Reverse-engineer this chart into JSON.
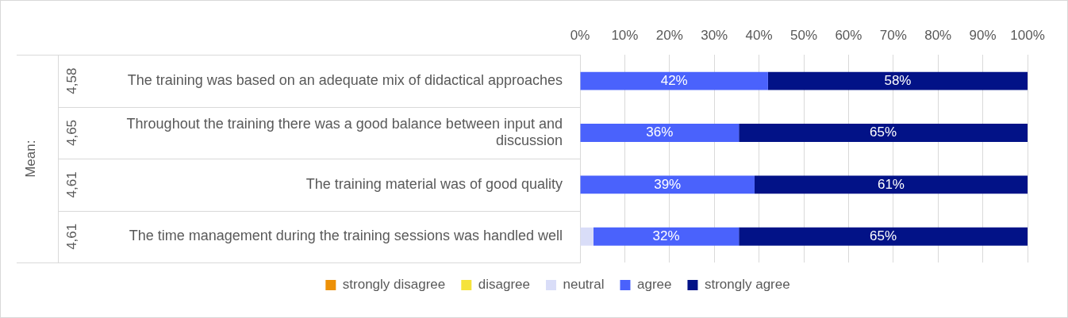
{
  "chart_data": {
    "type": "bar",
    "orientation": "horizontal",
    "stacked": true,
    "categories": [
      "The training was based on an adequate mix of didactical approaches",
      "Throughout the training there was a good balance between input and discussion",
      "The training material was of good quality",
      "The time management during the training sessions was handled well"
    ],
    "series": [
      {
        "name": "strongly disagree",
        "color": "#ed9107",
        "values": [
          0,
          0,
          0,
          0
        ]
      },
      {
        "name": "disagree",
        "color": "#f5e33c",
        "values": [
          0,
          0,
          0,
          0
        ]
      },
      {
        "name": "neutral",
        "color": "#d9ddf8",
        "values": [
          0,
          0,
          0,
          3
        ]
      },
      {
        "name": "agree",
        "color": "#4a62fc",
        "values": [
          42,
          35.5,
          39,
          32.5
        ],
        "value_labels": [
          "42%",
          "36%",
          "39%",
          "32%"
        ]
      },
      {
        "name": "strongly agree",
        "color": "#021287",
        "values": [
          58,
          64.5,
          61,
          64.5
        ],
        "value_labels": [
          "58%",
          "65%",
          "61%",
          "65%"
        ]
      }
    ],
    "xlim": [
      0,
      100
    ],
    "xticks": [
      {
        "value": 0,
        "label": "0%"
      },
      {
        "value": 10,
        "label": "10%"
      },
      {
        "value": 20,
        "label": "20%"
      },
      {
        "value": 30,
        "label": "30%"
      },
      {
        "value": 40,
        "label": "40%"
      },
      {
        "value": 50,
        "label": "50%"
      },
      {
        "value": 60,
        "label": "60%"
      },
      {
        "value": 70,
        "label": "70%"
      },
      {
        "value": 80,
        "label": "80%"
      },
      {
        "value": 90,
        "label": "90%"
      },
      {
        "value": 100,
        "label": "100%"
      }
    ],
    "annotations": [
      "Mean:",
      "4,58",
      "4,65",
      "4,61",
      "4,61"
    ],
    "grid": "x",
    "legend": "bottom"
  }
}
